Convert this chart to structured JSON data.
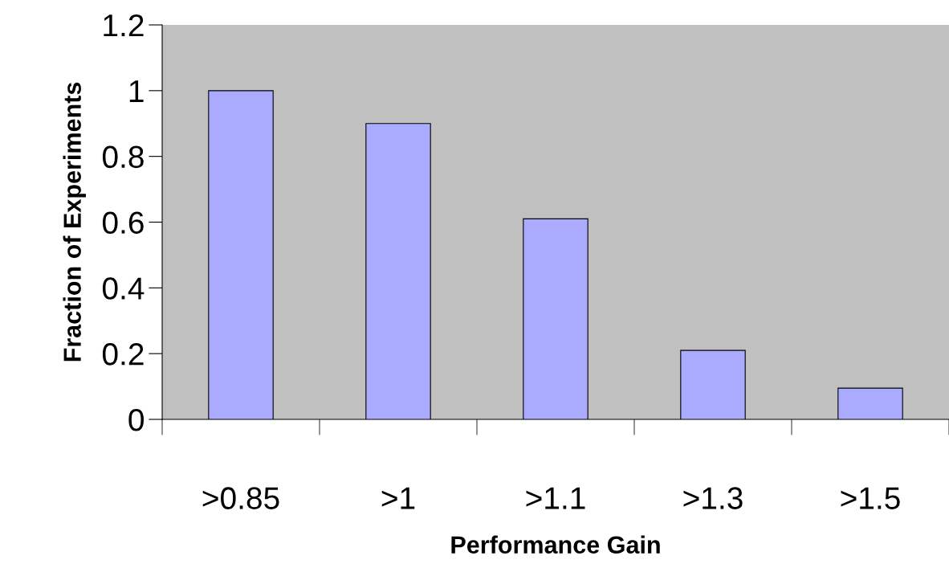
{
  "chart_data": {
    "type": "bar",
    "xlabel": "Performance Gain",
    "ylabel": "Fraction of Experiments",
    "categories": [
      ">0.85",
      ">1",
      ">1.1",
      ">1.3",
      ">1.5"
    ],
    "values": [
      1.0,
      0.9,
      0.61,
      0.21,
      0.095
    ],
    "color": "#aaaaff",
    "ylim": [
      0,
      1.2
    ],
    "yticks": [
      0,
      0.2,
      0.4,
      0.6,
      0.8,
      1,
      1.2
    ],
    "grid": false,
    "legend": false
  }
}
